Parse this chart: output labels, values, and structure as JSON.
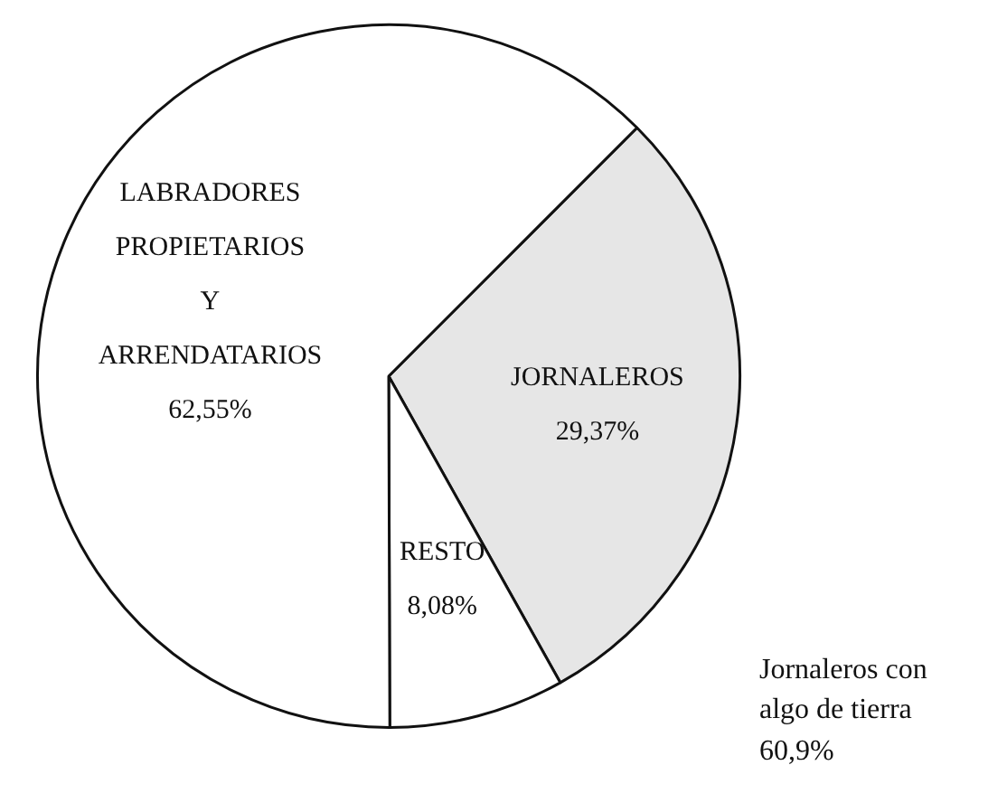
{
  "chart_data": {
    "type": "pie",
    "categories": [
      "JORNALEROS",
      "RESTO",
      "LABRADORES PROPIETARIOS Y ARRENDATARIOS"
    ],
    "values": [
      29.37,
      8.08,
      62.55
    ],
    "colors": [
      "#e6e6e6",
      "#ffffff",
      "#ffffff"
    ],
    "value_labels": [
      "29,37%",
      "8,08%",
      "62,55%"
    ],
    "annotations": [
      "Jornaleros con algo de tierra 60,9%"
    ],
    "legend": false
  }
}
